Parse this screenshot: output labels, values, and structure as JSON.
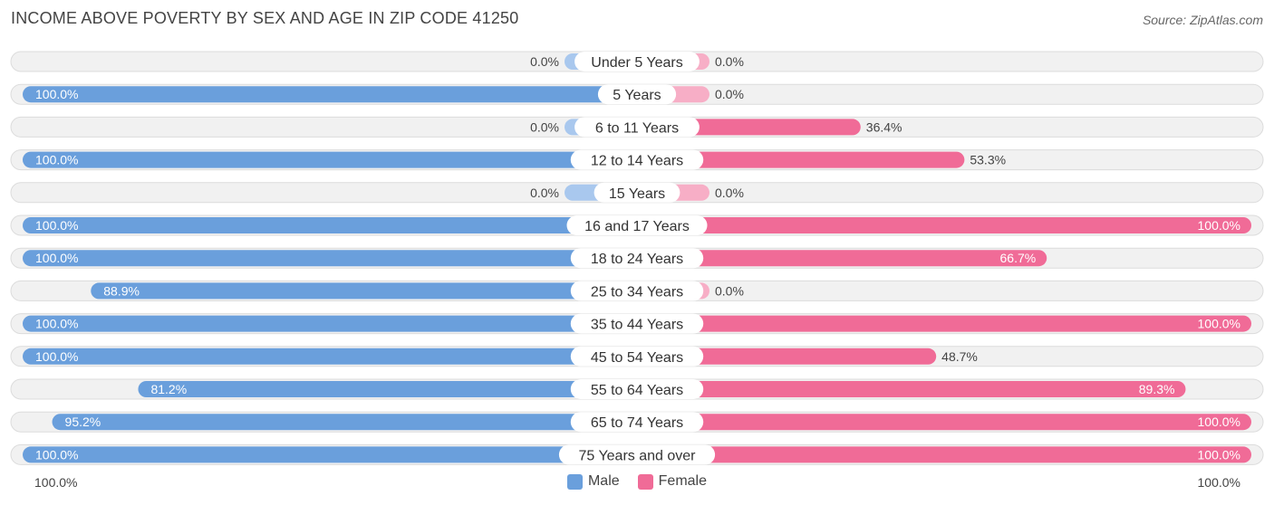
{
  "title": "INCOME ABOVE POVERTY BY SEX AND AGE IN ZIP CODE 41250",
  "source": "Source: ZipAtlas.com",
  "colors": {
    "male_full": "#6a9fdc",
    "male_light": "#a9c8ee",
    "female_full": "#f06b97",
    "female_light": "#f7aec6",
    "row_bg": "#f1f1f1",
    "row_border": "#dcdcdc"
  },
  "legend": {
    "male": "Male",
    "female": "Female"
  },
  "axis": {
    "left_label": "100.0%",
    "right_label": "100.0%"
  },
  "chart_data": {
    "type": "bar",
    "orientation": "horizontal-diverging",
    "categories": [
      "Under 5 Years",
      "5 Years",
      "6 to 11 Years",
      "12 to 14 Years",
      "15 Years",
      "16 and 17 Years",
      "18 to 24 Years",
      "25 to 34 Years",
      "35 to 44 Years",
      "45 to 54 Years",
      "55 to 64 Years",
      "65 to 74 Years",
      "75 Years and over"
    ],
    "series": [
      {
        "name": "Male",
        "values": [
          0.0,
          100.0,
          0.0,
          100.0,
          0.0,
          100.0,
          100.0,
          88.9,
          100.0,
          100.0,
          81.2,
          95.2,
          100.0
        ]
      },
      {
        "name": "Female",
        "values": [
          0.0,
          0.0,
          36.4,
          53.3,
          0.0,
          100.0,
          66.7,
          0.0,
          100.0,
          48.7,
          89.3,
          100.0,
          100.0
        ]
      }
    ],
    "labels_male": [
      "0.0%",
      "100.0%",
      "0.0%",
      "100.0%",
      "0.0%",
      "100.0%",
      "100.0%",
      "88.9%",
      "100.0%",
      "100.0%",
      "81.2%",
      "95.2%",
      "100.0%"
    ],
    "labels_female": [
      "0.0%",
      "0.0%",
      "36.4%",
      "53.3%",
      "0.0%",
      "100.0%",
      "66.7%",
      "0.0%",
      "100.0%",
      "48.7%",
      "89.3%",
      "100.0%",
      "100.0%"
    ],
    "xlim": [
      0,
      100
    ],
    "legend_position": "bottom-center"
  }
}
